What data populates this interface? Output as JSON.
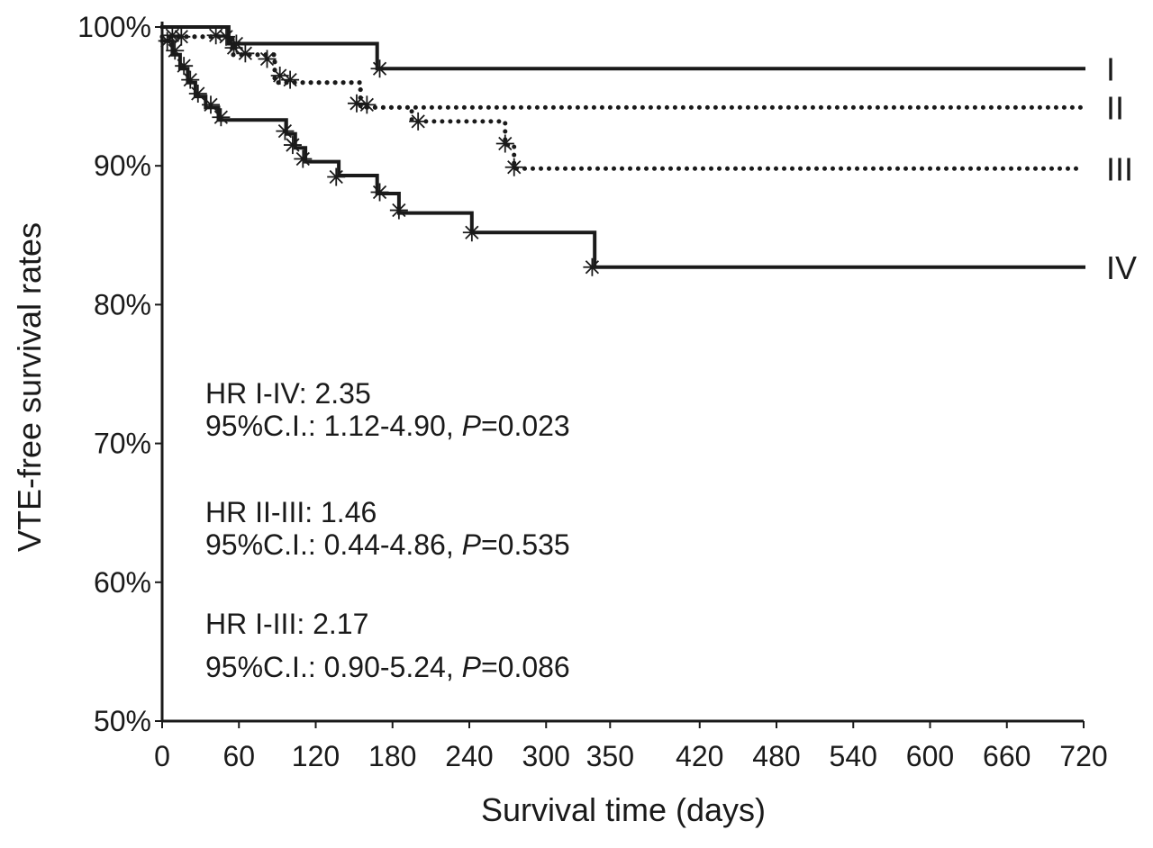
{
  "chart_data": {
    "type": "line",
    "step": true,
    "title": "",
    "xlabel": "Survival time (days)",
    "ylabel": "VTE-free survival rates",
    "xlim": [
      0,
      720
    ],
    "ylim": [
      50,
      100
    ],
    "x_ticks": [
      0,
      60,
      120,
      180,
      240,
      300,
      350,
      420,
      480,
      540,
      600,
      660,
      720
    ],
    "x_tick_labels": [
      "0",
      "60",
      "120",
      "180",
      "240",
      "300",
      "350",
      "420",
      "480",
      "540",
      "600",
      "660",
      "720"
    ],
    "y_ticks": [
      50,
      60,
      70,
      80,
      90,
      100
    ],
    "y_tick_labels": [
      "50%",
      "60%",
      "70%",
      "80%",
      "90%",
      "100%"
    ],
    "grid": false,
    "legend": "none",
    "series": [
      {
        "name": "I",
        "style": "solid",
        "steps": [
          [
            0,
            100
          ],
          [
            52,
            100
          ],
          [
            52,
            98.8
          ],
          [
            168,
            98.8
          ],
          [
            168,
            97
          ],
          [
            720,
            97
          ]
        ],
        "censored": [
          [
            58,
            98.8
          ],
          [
            170,
            97
          ]
        ]
      },
      {
        "name": "II",
        "style": "dotted",
        "steps": [
          [
            0,
            99.3
          ],
          [
            55,
            99.3
          ],
          [
            55,
            98
          ],
          [
            88,
            98
          ],
          [
            88,
            96
          ],
          [
            155,
            96
          ],
          [
            155,
            94.2
          ],
          [
            720,
            94.2
          ]
        ],
        "censored": [
          [
            8,
            99.4
          ],
          [
            15,
            99.3
          ],
          [
            42,
            99.4
          ],
          [
            50,
            99.3
          ],
          [
            56,
            98.5
          ],
          [
            65,
            98.1
          ],
          [
            82,
            97.7
          ],
          [
            92,
            96.5
          ],
          [
            100,
            96.2
          ],
          [
            152,
            94.5
          ],
          [
            160,
            94.4
          ]
        ]
      },
      {
        "name": "III",
        "style": "dotted",
        "steps": [
          [
            0,
            99.3
          ],
          [
            55,
            99.3
          ],
          [
            55,
            98
          ],
          [
            88,
            98
          ],
          [
            88,
            96
          ],
          [
            155,
            96
          ],
          [
            155,
            94.2
          ],
          [
            195,
            94.2
          ],
          [
            195,
            93.2
          ],
          [
            268,
            93.2
          ],
          [
            268,
            91.5
          ],
          [
            275,
            91.5
          ],
          [
            275,
            89.8
          ],
          [
            720,
            89.8
          ]
        ],
        "censored": [
          [
            200,
            93.2
          ],
          [
            268,
            91.6
          ],
          [
            275,
            89.9
          ]
        ]
      },
      {
        "name": "IV",
        "style": "solid",
        "steps": [
          [
            0,
            99
          ],
          [
            8,
            99
          ],
          [
            8,
            98
          ],
          [
            14,
            98
          ],
          [
            14,
            97
          ],
          [
            20,
            97
          ],
          [
            20,
            96
          ],
          [
            26,
            96
          ],
          [
            26,
            95
          ],
          [
            34,
            95
          ],
          [
            34,
            94.2
          ],
          [
            44,
            94.2
          ],
          [
            44,
            93.3
          ],
          [
            97,
            93.3
          ],
          [
            97,
            92.3
          ],
          [
            104,
            92.3
          ],
          [
            104,
            91.3
          ],
          [
            112,
            91.3
          ],
          [
            112,
            90.3
          ],
          [
            138,
            90.3
          ],
          [
            138,
            89.3
          ],
          [
            168,
            89.3
          ],
          [
            168,
            88
          ],
          [
            185,
            88
          ],
          [
            185,
            86.6
          ],
          [
            242,
            86.6
          ],
          [
            242,
            85.2
          ],
          [
            338,
            85.2
          ],
          [
            338,
            82.7
          ],
          [
            720,
            82.7
          ]
        ],
        "censored": [
          [
            4,
            99
          ],
          [
            10,
            98.3
          ],
          [
            17,
            97.2
          ],
          [
            22,
            96.2
          ],
          [
            28,
            95.2
          ],
          [
            38,
            94.4
          ],
          [
            46,
            93.5
          ],
          [
            96,
            92.5
          ],
          [
            102,
            91.5
          ],
          [
            110,
            90.5
          ],
          [
            136,
            89.2
          ],
          [
            170,
            88.1
          ],
          [
            185,
            86.8
          ],
          [
            242,
            85.2
          ],
          [
            336,
            82.7
          ]
        ]
      }
    ],
    "annotations": [
      {
        "lines": [
          "HR I-IV: 2.35",
          "95%C.I.: 1.12-4.90, P=0.023"
        ]
      },
      {
        "lines": [
          "HR II-III: 1.46",
          "95%C.I.: 0.44-4.86, P=0.535"
        ]
      },
      {
        "lines": [
          "HR I-III: 2.17",
          "95%C.I.: 0.90-5.24, P=0.086"
        ]
      }
    ]
  }
}
